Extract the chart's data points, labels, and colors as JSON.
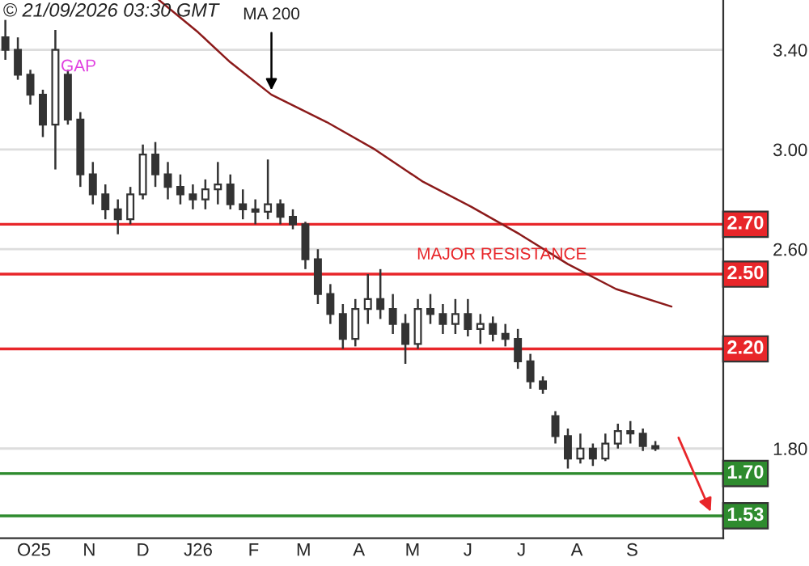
{
  "chart_data": {
    "type": "candlestick",
    "title": "© 21/09/2026 03:30 GMT",
    "x": [
      "2025-09-15",
      "2025-09-22",
      "2025-09-29",
      "2025-10-06",
      "2025-10-13",
      "2025-10-20",
      "2025-10-27",
      "2025-11-03",
      "2025-11-10",
      "2025-11-17",
      "2025-11-24",
      "2025-12-01",
      "2025-12-08",
      "2025-12-15",
      "2025-12-22",
      "2025-12-29",
      "2026-01-05",
      "2026-01-12",
      "2026-01-19",
      "2026-01-26",
      "2026-02-02",
      "2026-02-09",
      "2026-02-16",
      "2026-02-23",
      "2026-03-02",
      "2026-03-09",
      "2026-03-16",
      "2026-03-23",
      "2026-03-30",
      "2026-04-06",
      "2026-04-13",
      "2026-04-20",
      "2026-04-27",
      "2026-05-04",
      "2026-05-11",
      "2026-05-18",
      "2026-05-25",
      "2026-06-01",
      "2026-06-08",
      "2026-06-15",
      "2026-06-22",
      "2026-06-29",
      "2026-07-06",
      "2026-07-13",
      "2026-07-20",
      "2026-07-27",
      "2026-08-03",
      "2026-08-10",
      "2026-08-17",
      "2026-08-24",
      "2026-08-31",
      "2026-09-07",
      "2026-09-14"
    ],
    "ohlc": [
      [
        3.45,
        3.52,
        3.36,
        3.4
      ],
      [
        3.4,
        3.45,
        3.28,
        3.3
      ],
      [
        3.3,
        3.32,
        3.18,
        3.22
      ],
      [
        3.22,
        3.24,
        3.05,
        3.1
      ],
      [
        3.1,
        3.48,
        2.92,
        3.4
      ],
      [
        3.3,
        3.32,
        3.1,
        3.12
      ],
      [
        3.12,
        3.15,
        2.85,
        2.9
      ],
      [
        2.9,
        2.95,
        2.78,
        2.82
      ],
      [
        2.82,
        2.86,
        2.72,
        2.76
      ],
      [
        2.76,
        2.8,
        2.66,
        2.72
      ],
      [
        2.72,
        2.85,
        2.7,
        2.82
      ],
      [
        2.82,
        3.02,
        2.8,
        2.98
      ],
      [
        2.98,
        3.03,
        2.85,
        2.9
      ],
      [
        2.9,
        2.95,
        2.8,
        2.85
      ],
      [
        2.85,
        2.9,
        2.78,
        2.82
      ],
      [
        2.82,
        2.86,
        2.76,
        2.8
      ],
      [
        2.8,
        2.88,
        2.76,
        2.84
      ],
      [
        2.84,
        2.95,
        2.78,
        2.86
      ],
      [
        2.86,
        2.9,
        2.76,
        2.78
      ],
      [
        2.78,
        2.84,
        2.72,
        2.76
      ],
      [
        2.76,
        2.8,
        2.7,
        2.75
      ],
      [
        2.75,
        2.96,
        2.72,
        2.78
      ],
      [
        2.78,
        2.8,
        2.7,
        2.73
      ],
      [
        2.73,
        2.76,
        2.68,
        2.7
      ],
      [
        2.7,
        2.71,
        2.52,
        2.56
      ],
      [
        2.56,
        2.6,
        2.38,
        2.42
      ],
      [
        2.42,
        2.46,
        2.3,
        2.34
      ],
      [
        2.34,
        2.38,
        2.2,
        2.24
      ],
      [
        2.24,
        2.4,
        2.21,
        2.36
      ],
      [
        2.36,
        2.5,
        2.3,
        2.4
      ],
      [
        2.4,
        2.52,
        2.32,
        2.36
      ],
      [
        2.36,
        2.42,
        2.26,
        2.3
      ],
      [
        2.3,
        2.34,
        2.14,
        2.22
      ],
      [
        2.22,
        2.4,
        2.2,
        2.36
      ],
      [
        2.36,
        2.42,
        2.3,
        2.34
      ],
      [
        2.34,
        2.38,
        2.26,
        2.3
      ],
      [
        2.3,
        2.4,
        2.26,
        2.34
      ],
      [
        2.34,
        2.4,
        2.25,
        2.28
      ],
      [
        2.28,
        2.34,
        2.22,
        2.3
      ],
      [
        2.3,
        2.33,
        2.23,
        2.26
      ],
      [
        2.26,
        2.3,
        2.21,
        2.24
      ],
      [
        2.24,
        2.28,
        2.12,
        2.15
      ],
      [
        2.15,
        2.18,
        2.04,
        2.07
      ],
      [
        2.07,
        2.09,
        2.02,
        2.04
      ],
      [
        1.93,
        1.95,
        1.82,
        1.85
      ],
      [
        1.85,
        1.88,
        1.72,
        1.76
      ],
      [
        1.76,
        1.86,
        1.74,
        1.8
      ],
      [
        1.8,
        1.82,
        1.73,
        1.76
      ],
      [
        1.76,
        1.86,
        1.75,
        1.82
      ],
      [
        1.82,
        1.9,
        1.8,
        1.87
      ],
      [
        1.87,
        1.91,
        1.82,
        1.86
      ],
      [
        1.86,
        1.88,
        1.79,
        1.81
      ],
      [
        1.81,
        1.83,
        1.79,
        1.8
      ]
    ],
    "color": "#333333",
    "series": [
      {
        "type": "line",
        "color": "#8b1a1a",
        "x": [
          "2025-12-10",
          "2026-01-01",
          "2026-01-19",
          "2026-02-11",
          "2026-03-14",
          "2026-04-10",
          "2026-05-07",
          "2026-06-03",
          "2026-06-30",
          "2026-07-27",
          "2026-08-23",
          "2026-09-23"
        ],
        "values": [
          3.6,
          3.47,
          3.35,
          3.22,
          3.11,
          3.0,
          2.87,
          2.77,
          2.66,
          2.54,
          2.44,
          2.37
        ]
      }
    ],
    "ref_lines": [
      {
        "axis": "y",
        "value": 2.7,
        "label": "2.70",
        "color": "#e8262a"
      },
      {
        "axis": "y",
        "value": 2.5,
        "label": "2.50",
        "color": "#e8262a"
      },
      {
        "axis": "y",
        "value": 2.2,
        "label": "2.20",
        "color": "#e8262a"
      },
      {
        "axis": "y",
        "value": 1.7,
        "label": "1.70",
        "color": "#2e8b2e"
      },
      {
        "axis": "y",
        "value": 1.53,
        "label": "1.53",
        "color": "#2e8b2e"
      }
    ],
    "annotations": [
      {
        "text": "MA 200",
        "x": "2026-02-11",
        "y": 3.22
      },
      {
        "text": "GAP",
        "x": "2025-10-16",
        "y": 3.3
      },
      {
        "text": "MAJOR RESISTANCE",
        "x": "2026-06-20",
        "y": 2.5
      }
    ],
    "xlim": [
      "2025-09-12",
      "2026-10-22"
    ],
    "xticks": [
      {
        "value": "2025-10-01",
        "label": "O25"
      },
      {
        "value": "2025-11-01",
        "label": "N"
      },
      {
        "value": "2025-12-01",
        "label": "D"
      },
      {
        "value": "2026-01-01",
        "label": "J26"
      },
      {
        "value": "2026-02-01",
        "label": "F"
      },
      {
        "value": "2026-03-01",
        "label": "M"
      },
      {
        "value": "2026-04-01",
        "label": "A"
      },
      {
        "value": "2026-05-01",
        "label": "M"
      },
      {
        "value": "2026-06-01",
        "label": "J"
      },
      {
        "value": "2026-07-01",
        "label": "J"
      },
      {
        "value": "2026-08-01",
        "label": "A"
      },
      {
        "value": "2026-09-01",
        "label": "S"
      }
    ],
    "ylim": [
      1.44,
      3.6
    ],
    "yticks": [
      {
        "value": 3.4,
        "label": "3.40"
      },
      {
        "value": 3.0,
        "label": "3.00"
      },
      {
        "value": 2.6,
        "label": "2.60"
      },
      {
        "value": 1.8,
        "label": "1.80"
      }
    ],
    "grid": "y"
  }
}
